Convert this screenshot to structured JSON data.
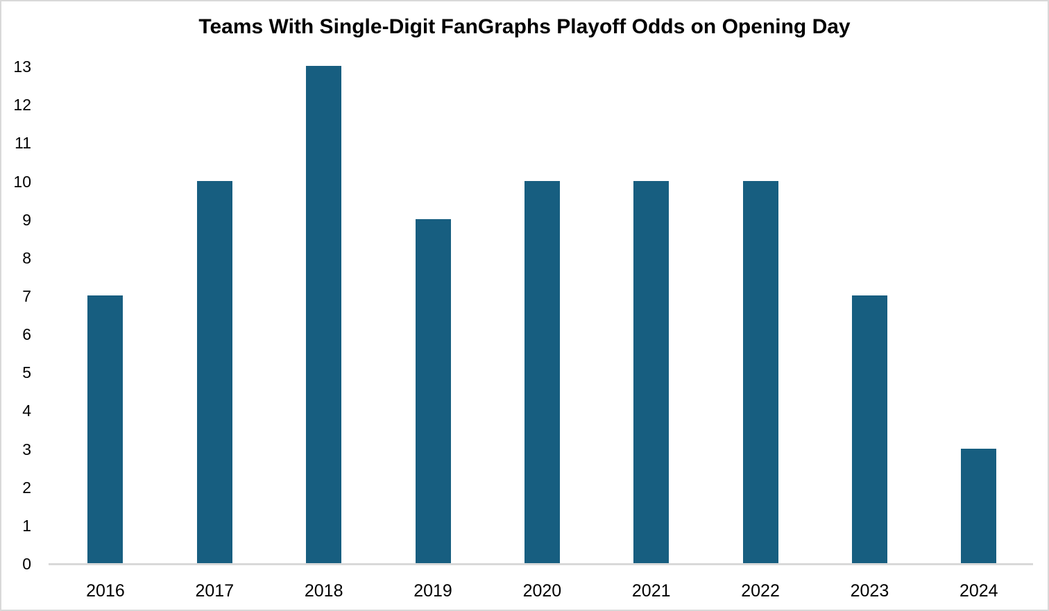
{
  "chart_data": {
    "type": "bar",
    "title": "Teams With Single-Digit FanGraphs Playoff Odds on Opening Day",
    "categories": [
      "2016",
      "2017",
      "2018",
      "2019",
      "2020",
      "2021",
      "2022",
      "2023",
      "2024"
    ],
    "values": [
      7,
      10,
      13,
      9,
      10,
      10,
      10,
      7,
      3
    ],
    "xlabel": "",
    "ylabel": "",
    "ylim": [
      0,
      13
    ],
    "yticks": [
      0,
      1,
      2,
      3,
      4,
      5,
      6,
      7,
      8,
      9,
      10,
      11,
      12,
      13
    ],
    "grid": false,
    "legend": null,
    "colors": {
      "bar": "#175E80",
      "axis_line": "#D9D9D9",
      "frame_border": "#D9D9D9",
      "text": "#000000",
      "background": "#FFFFFF"
    }
  }
}
